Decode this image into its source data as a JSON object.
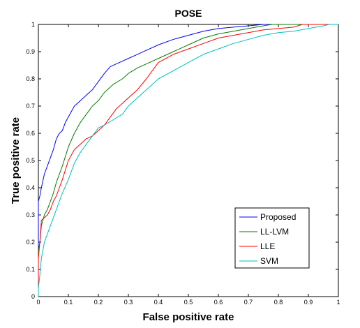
{
  "chart_data": {
    "type": "line",
    "title": "POSE",
    "xlabel": "False positive rate",
    "ylabel": "True positive rate",
    "xlim": [
      0,
      1
    ],
    "ylim": [
      0,
      1
    ],
    "xticks": [
      "0",
      "0.1",
      "0.2",
      "0.3",
      "0.4",
      "0.5",
      "0.6",
      "0.7",
      "0.8",
      "0.9",
      "1"
    ],
    "yticks": [
      "0",
      "0.1",
      "0.2",
      "0.3",
      "0.4",
      "0.5",
      "0.6",
      "0.7",
      "0.8",
      "0.9",
      "1"
    ],
    "grid": false,
    "legend_position": "bottom-right",
    "series": [
      {
        "name": "Proposed",
        "color": "#0000ff",
        "x": [
          0,
          0,
          0.005,
          0.01,
          0.02,
          0.03,
          0.04,
          0.05,
          0.06,
          0.07,
          0.08,
          0.09,
          0.1,
          0.12,
          0.14,
          0.16,
          0.18,
          0.2,
          0.22,
          0.24,
          0.27,
          0.3,
          0.33,
          0.36,
          0.4,
          0.45,
          0.5,
          0.55,
          0.6,
          0.65,
          0.7,
          0.75,
          0.8,
          0.85,
          0.9,
          0.95,
          1.0
        ],
        "y": [
          0,
          0.35,
          0.37,
          0.4,
          0.45,
          0.48,
          0.51,
          0.54,
          0.58,
          0.6,
          0.61,
          0.64,
          0.66,
          0.7,
          0.72,
          0.74,
          0.76,
          0.79,
          0.82,
          0.845,
          0.86,
          0.875,
          0.89,
          0.905,
          0.925,
          0.945,
          0.96,
          0.975,
          0.985,
          0.99,
          0.995,
          1.0,
          1.0,
          1.0,
          1.0,
          1.0,
          1.0
        ]
      },
      {
        "name": "LL-LVM",
        "color": "#007f00",
        "x": [
          0,
          0,
          0.005,
          0.01,
          0.02,
          0.03,
          0.04,
          0.05,
          0.06,
          0.07,
          0.08,
          0.1,
          0.12,
          0.14,
          0.16,
          0.18,
          0.2,
          0.22,
          0.25,
          0.28,
          0.3,
          0.33,
          0.36,
          0.4,
          0.45,
          0.5,
          0.55,
          0.6,
          0.65,
          0.7,
          0.75,
          0.78,
          0.8,
          0.85,
          0.9,
          0.95,
          1.0
        ],
        "y": [
          0,
          0.17,
          0.2,
          0.26,
          0.3,
          0.32,
          0.35,
          0.38,
          0.42,
          0.45,
          0.48,
          0.55,
          0.6,
          0.64,
          0.67,
          0.7,
          0.72,
          0.75,
          0.78,
          0.8,
          0.82,
          0.84,
          0.855,
          0.875,
          0.9,
          0.925,
          0.95,
          0.965,
          0.975,
          0.985,
          0.995,
          1.0,
          1.0,
          1.0,
          1.0,
          1.0,
          1.0
        ]
      },
      {
        "name": "LLE",
        "color": "#ff0000",
        "x": [
          0,
          0,
          0.005,
          0.01,
          0.02,
          0.03,
          0.04,
          0.05,
          0.06,
          0.07,
          0.08,
          0.1,
          0.12,
          0.14,
          0.16,
          0.18,
          0.2,
          0.22,
          0.24,
          0.26,
          0.28,
          0.3,
          0.33,
          0.36,
          0.4,
          0.45,
          0.5,
          0.55,
          0.6,
          0.65,
          0.7,
          0.75,
          0.8,
          0.85,
          0.88,
          0.9,
          0.95,
          1.0
        ],
        "y": [
          0,
          0.14,
          0.2,
          0.28,
          0.29,
          0.3,
          0.32,
          0.35,
          0.37,
          0.4,
          0.43,
          0.5,
          0.54,
          0.56,
          0.58,
          0.59,
          0.61,
          0.63,
          0.66,
          0.69,
          0.71,
          0.73,
          0.76,
          0.8,
          0.86,
          0.89,
          0.91,
          0.93,
          0.95,
          0.96,
          0.97,
          0.98,
          0.985,
          0.99,
          1.0,
          1.0,
          1.0,
          1.0
        ]
      },
      {
        "name": "SVM",
        "color": "#00bfbf",
        "x": [
          0,
          0,
          0.005,
          0.01,
          0.02,
          0.03,
          0.04,
          0.05,
          0.06,
          0.07,
          0.08,
          0.1,
          0.12,
          0.14,
          0.16,
          0.18,
          0.2,
          0.22,
          0.25,
          0.28,
          0.3,
          0.33,
          0.36,
          0.4,
          0.45,
          0.5,
          0.55,
          0.6,
          0.65,
          0.7,
          0.75,
          0.8,
          0.85,
          0.9,
          0.95,
          0.97,
          1.0
        ],
        "y": [
          0,
          0.03,
          0.08,
          0.14,
          0.2,
          0.23,
          0.26,
          0.29,
          0.32,
          0.35,
          0.38,
          0.43,
          0.49,
          0.53,
          0.56,
          0.59,
          0.62,
          0.63,
          0.65,
          0.67,
          0.7,
          0.73,
          0.76,
          0.8,
          0.83,
          0.86,
          0.89,
          0.91,
          0.93,
          0.945,
          0.96,
          0.97,
          0.975,
          0.985,
          0.995,
          1.0,
          1.0
        ]
      }
    ]
  }
}
